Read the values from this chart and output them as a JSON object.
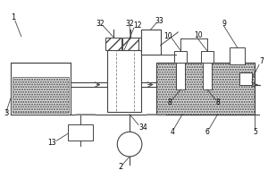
{
  "lc": "#444444",
  "bg": "white",
  "gray_fill": "#d8d8d8",
  "dot_fc": "#e0e0e0",
  "figsize": [
    3.0,
    2.0
  ],
  "dpi": 100
}
